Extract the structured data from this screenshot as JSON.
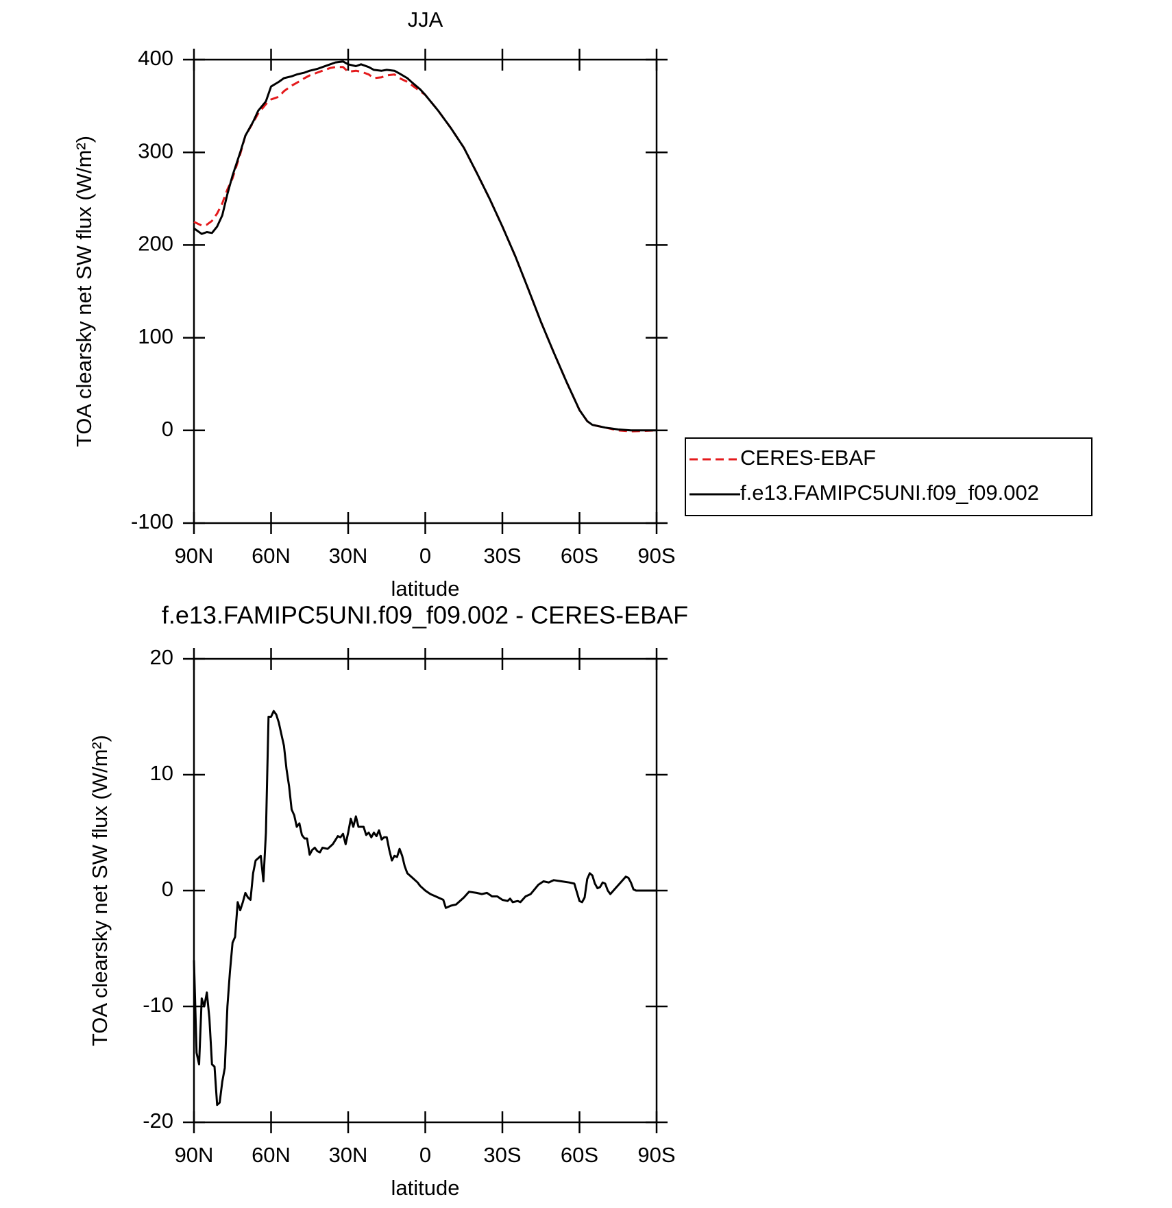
{
  "chart_data": [
    {
      "type": "line",
      "title": "JJA",
      "xlabel": "latitude",
      "ylabel": "TOA clearsky net SW flux (W/m²)",
      "xlim": [
        90,
        -90
      ],
      "xticks": [
        {
          "value": 90,
          "label": "90N"
        },
        {
          "value": 60,
          "label": "60N"
        },
        {
          "value": 30,
          "label": "30N"
        },
        0,
        {
          "value": -30,
          "label": "30S"
        },
        {
          "value": -60,
          "label": "60S"
        },
        {
          "value": -90,
          "label": "90S"
        }
      ],
      "ylim": [
        -100,
        400
      ],
      "yticks": [
        -100,
        0,
        100,
        200,
        300,
        400
      ],
      "legend": "right",
      "x": [
        90,
        87,
        85,
        83,
        81,
        79,
        77,
        75,
        72,
        70,
        67,
        65,
        62,
        60,
        57,
        55,
        52,
        50,
        47,
        45,
        42,
        40,
        37,
        35,
        32,
        30,
        27,
        25,
        22,
        20,
        17,
        15,
        12,
        10,
        7,
        5,
        2,
        0,
        -5,
        -10,
        -15,
        -20,
        -25,
        -30,
        -35,
        -40,
        -45,
        -50,
        -55,
        -60,
        -63,
        -65,
        -70,
        -75,
        -80,
        -90
      ],
      "series": [
        {
          "name": "CERES-EBAF",
          "color": "#e41a1c",
          "linestyle": "dashed",
          "values": [
            225,
            221,
            222,
            226,
            234,
            245,
            260,
            272,
            298,
            318,
            332,
            342,
            352,
            357,
            360,
            366,
            372,
            375,
            380,
            383,
            386,
            388,
            391,
            392,
            392,
            387,
            388,
            387,
            384,
            380,
            381,
            383,
            384,
            380,
            376,
            372,
            366,
            362,
            345,
            326,
            305,
            278,
            250,
            220,
            188,
            153,
            117,
            84,
            52,
            22,
            10,
            6,
            3,
            0,
            -1,
            0
          ]
        },
        {
          "name": "f.e13.FAMIPC5UNI.f09_f09.002",
          "color": "#000000",
          "linestyle": "solid",
          "values": [
            218,
            212,
            214,
            213,
            220,
            232,
            255,
            275,
            300,
            318,
            333,
            345,
            355,
            371,
            376,
            380,
            382,
            384,
            386,
            388,
            390,
            392,
            395,
            397,
            398,
            395,
            393,
            395,
            392,
            389,
            388,
            389,
            388,
            385,
            380,
            375,
            368,
            362,
            345,
            326,
            305,
            278,
            250,
            220,
            188,
            153,
            117,
            84,
            52,
            22,
            10,
            6,
            3,
            1,
            0,
            0
          ]
        }
      ]
    },
    {
      "type": "line",
      "title": "f.e13.FAMIPC5UNI.f09_f09.002 - CERES-EBAF",
      "xlabel": "latitude",
      "ylabel": "TOA clearsky net SW flux (W/m²)",
      "xlim": [
        90,
        -90
      ],
      "xticks": [
        {
          "value": 90,
          "label": "90N"
        },
        {
          "value": 60,
          "label": "60N"
        },
        {
          "value": 30,
          "label": "30N"
        },
        0,
        {
          "value": -30,
          "label": "30S"
        },
        {
          "value": -60,
          "label": "60S"
        },
        {
          "value": -90,
          "label": "90S"
        }
      ],
      "ylim": [
        -20,
        20
      ],
      "yticks": [
        -20,
        -10,
        0,
        10,
        20
      ],
      "x": [
        90,
        89,
        88,
        87,
        86,
        85,
        84,
        83,
        82,
        81,
        80,
        79,
        78,
        77,
        76,
        75,
        74,
        73,
        72,
        71,
        70,
        69,
        68,
        67,
        66,
        65,
        64,
        63,
        62,
        61,
        60,
        59,
        58,
        57,
        56,
        55,
        54,
        53,
        52,
        51,
        50,
        49,
        48,
        47,
        46,
        45,
        44,
        43,
        42,
        41,
        40,
        38,
        36,
        34,
        33,
        32,
        31,
        30,
        29,
        28,
        27,
        26,
        25,
        24,
        23,
        22,
        21,
        20,
        19,
        18,
        17,
        16,
        15,
        14,
        13,
        12,
        11,
        10,
        9,
        8,
        7,
        5,
        3,
        2,
        0,
        -2,
        -5,
        -7,
        -8,
        -10,
        -12,
        -15,
        -17,
        -20,
        -22,
        -24,
        -26,
        -28,
        -30,
        -32,
        -33,
        -34,
        -36,
        -37,
        -39,
        -41,
        -44,
        -46,
        -48,
        -50,
        -53,
        -56,
        -58,
        -60,
        -61,
        -62,
        -63,
        -64,
        -65,
        -66,
        -67,
        -68,
        -69,
        -70,
        -71,
        -72,
        -74,
        -76,
        -78,
        -79,
        -80,
        -81,
        -82,
        -90
      ],
      "series": [
        {
          "color": "#000000",
          "linestyle": "solid",
          "values": [
            -6,
            -14,
            -15,
            -9.3,
            -10,
            -8.8,
            -11,
            -15,
            -15.2,
            -18.5,
            -18.3,
            -16.5,
            -15.3,
            -10,
            -7,
            -4.5,
            -4,
            -1,
            -1.7,
            -1,
            -0.2,
            -0.6,
            -0.8,
            1.5,
            2.6,
            2.8,
            3,
            0.8,
            5,
            15,
            15,
            15.5,
            15.2,
            14.5,
            13.5,
            12.5,
            10.5,
            9,
            7,
            6.5,
            5.5,
            5.8,
            4.8,
            4.5,
            4.5,
            3.1,
            3.5,
            3.7,
            3.4,
            3.3,
            3.7,
            3.6,
            4,
            4.7,
            4.6,
            4.9,
            4,
            5,
            6.2,
            5.5,
            6.4,
            5.5,
            5.5,
            5.5,
            4.8,
            5,
            4.6,
            5,
            4.7,
            5.2,
            4.4,
            4.6,
            4.6,
            3.5,
            2.6,
            3,
            2.9,
            3.6,
            3,
            2.1,
            1.5,
            1.1,
            0.7,
            0.4,
            0,
            -0.3,
            -0.6,
            -0.8,
            -1.5,
            -1.3,
            -1.2,
            -0.6,
            -0.1,
            -0.2,
            -0.3,
            -0.2,
            -0.5,
            -0.5,
            -0.8,
            -0.9,
            -0.7,
            -1,
            -0.9,
            -1,
            -0.5,
            -0.3,
            0.5,
            0.8,
            0.7,
            0.9,
            0.8,
            0.7,
            0.6,
            -0.9,
            -1,
            -0.6,
            1,
            1.5,
            1.3,
            0.6,
            0.2,
            0.3,
            0.7,
            0.6,
            0,
            -0.3,
            0.2,
            0.7,
            1.2,
            1.1,
            0.7,
            0.1,
            0,
            0
          ]
        }
      ]
    }
  ]
}
